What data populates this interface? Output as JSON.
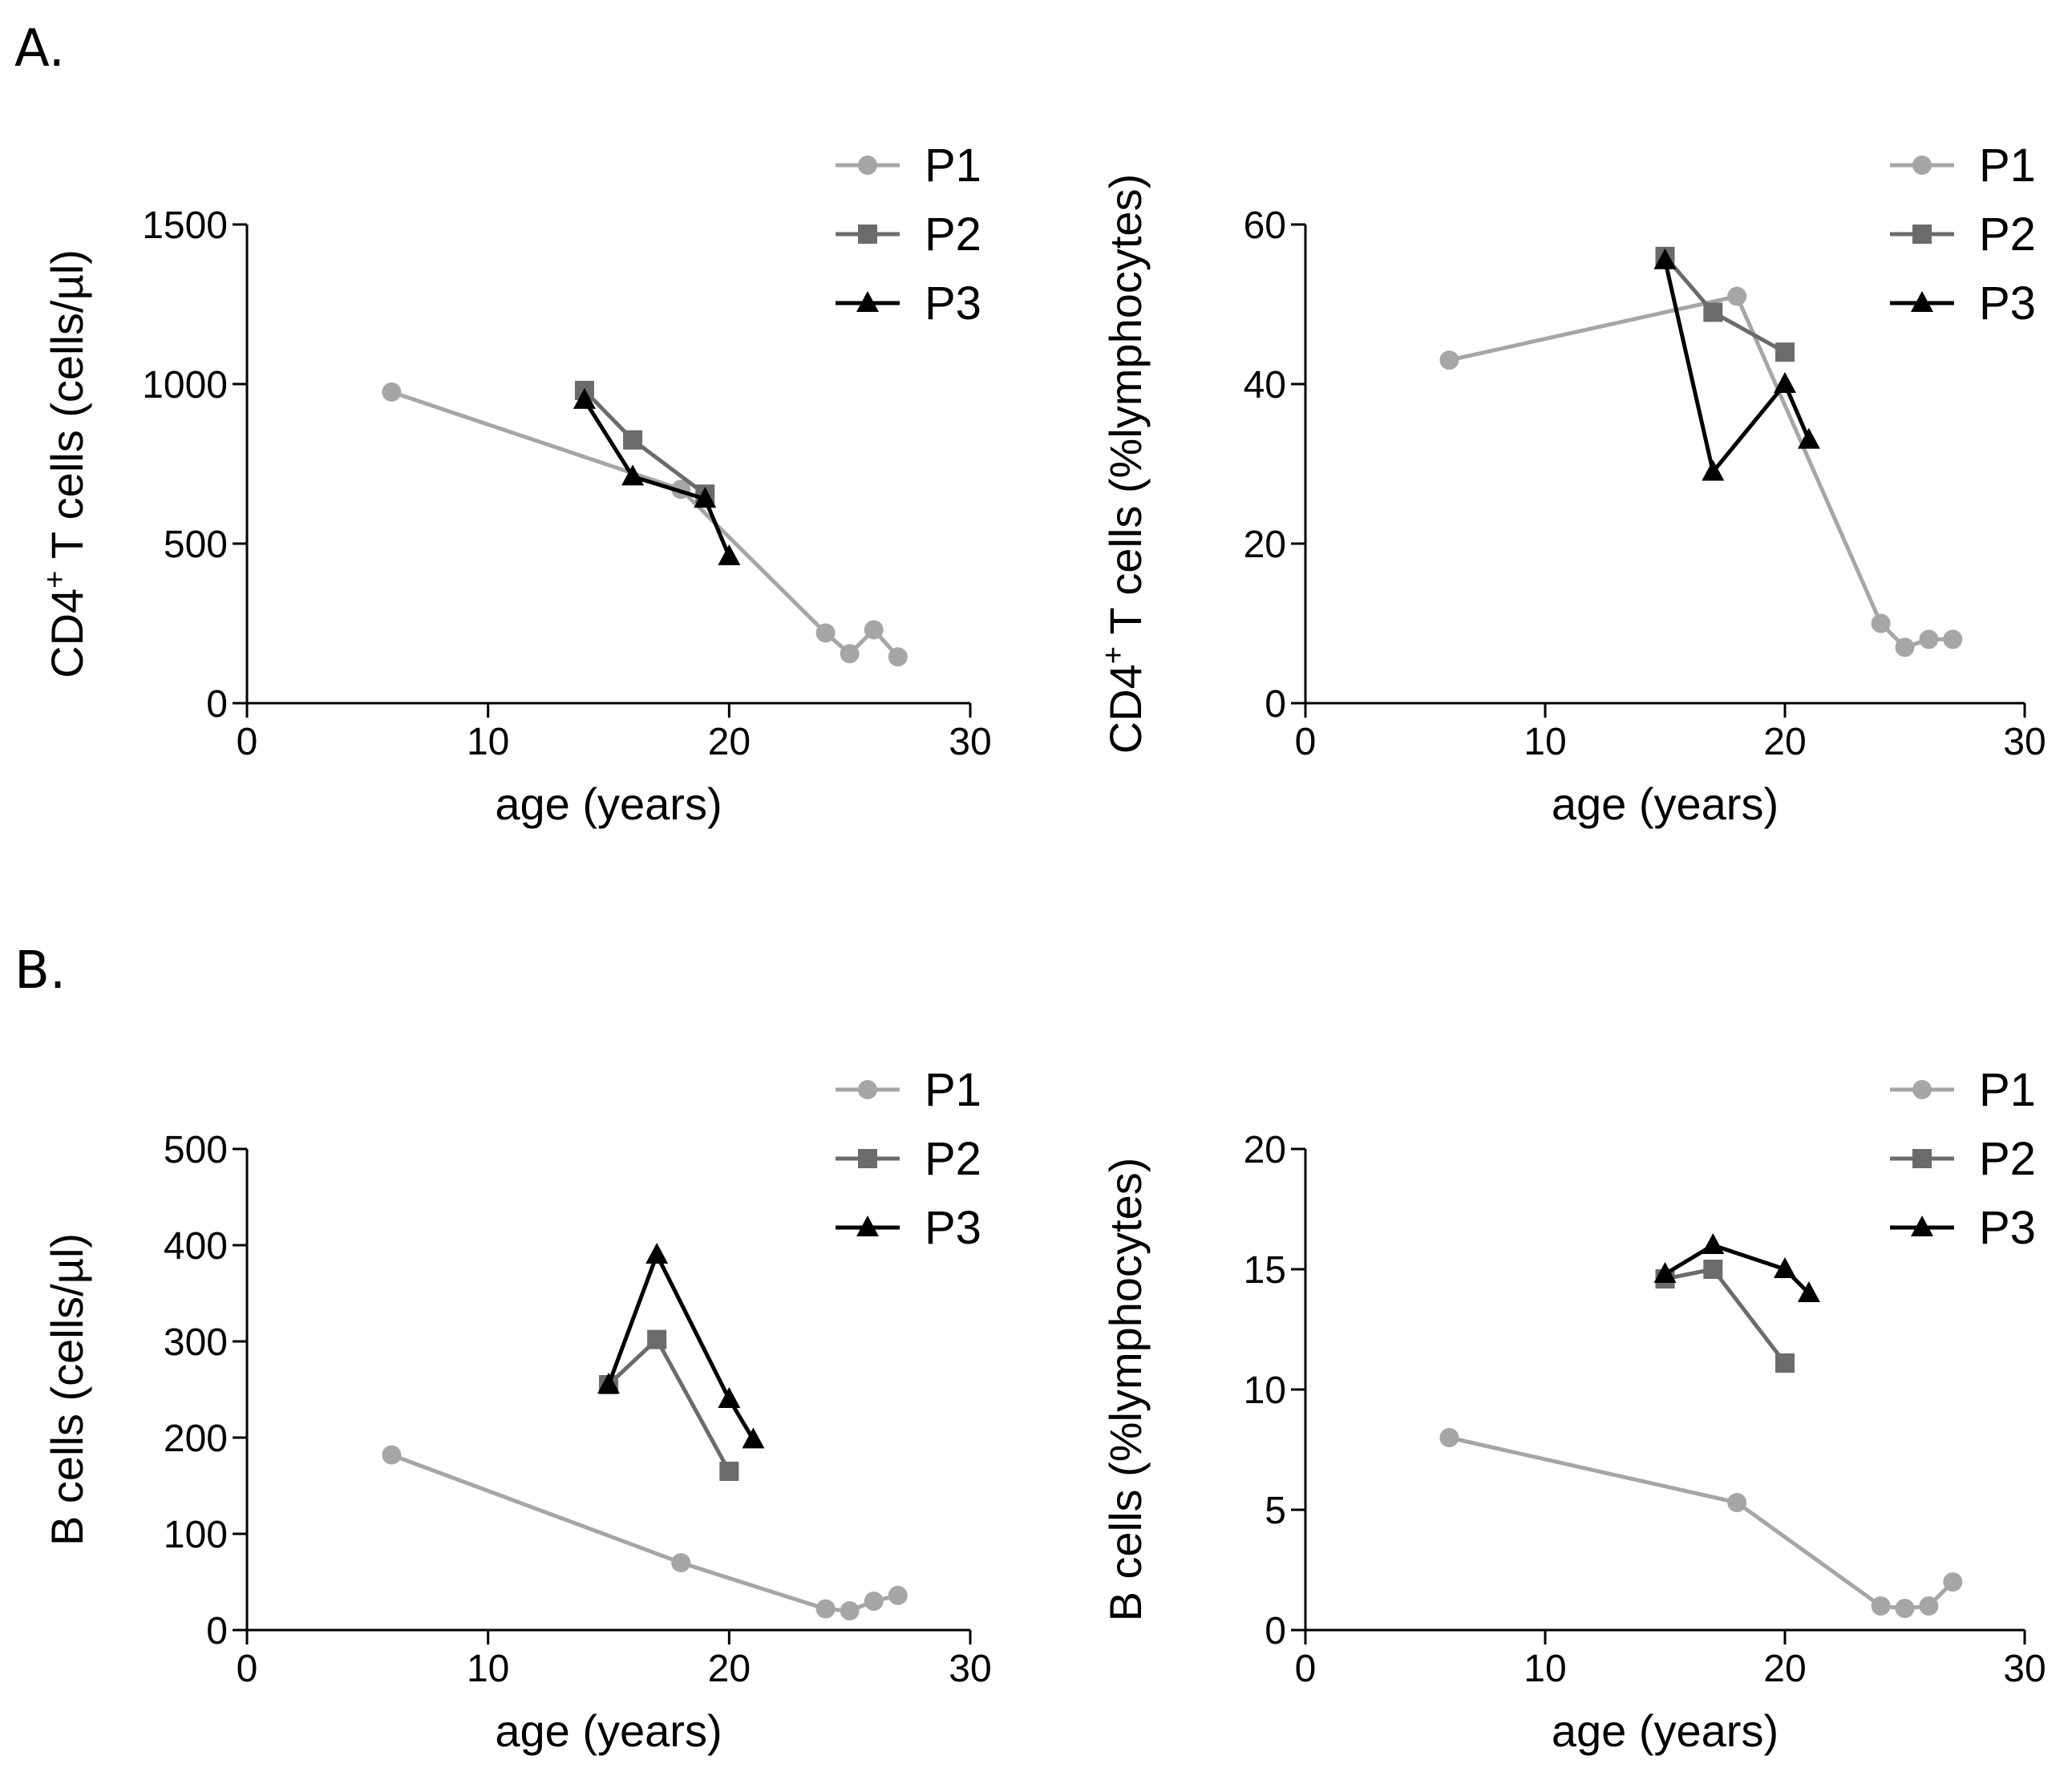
{
  "panel_labels": {
    "a": "A.",
    "b": "B."
  },
  "series_styles": [
    {
      "name": "P1",
      "color": "#a6a6a6",
      "marker": "circle"
    },
    {
      "name": "P2",
      "color": "#6b6b6b",
      "marker": "square"
    },
    {
      "name": "P3",
      "color": "#000000",
      "marker": "triangle"
    }
  ],
  "chart_data": [
    {
      "type": "line",
      "title": "",
      "xlabel": "age (years)",
      "ylabel_main": "CD4",
      "ylabel_sup": "+",
      "ylabel_rest": " T cells (cells/µl)",
      "xlim": [
        0,
        30
      ],
      "ylim": [
        0,
        1500
      ],
      "xticks": [
        0,
        10,
        20,
        30
      ],
      "yticks": [
        0,
        500,
        1000,
        1500
      ],
      "legend": "top-right",
      "series": [
        {
          "name": "P1",
          "x": [
            6,
            18,
            24,
            25,
            26,
            27
          ],
          "y": [
            975,
            670,
            220,
            155,
            230,
            145
          ]
        },
        {
          "name": "P2",
          "x": [
            14,
            16,
            19
          ],
          "y": [
            980,
            825,
            655
          ]
        },
        {
          "name": "P3",
          "x": [
            14,
            16,
            19,
            20
          ],
          "y": [
            950,
            710,
            640,
            460
          ]
        }
      ]
    },
    {
      "type": "line",
      "title": "",
      "xlabel": "age (years)",
      "ylabel_main": "CD4",
      "ylabel_sup": "+",
      "ylabel_rest": " T cells (%lymphocytes)",
      "xlim": [
        0,
        30
      ],
      "ylim": [
        0,
        60
      ],
      "xticks": [
        0,
        10,
        20,
        30
      ],
      "yticks": [
        0,
        20,
        40,
        60
      ],
      "legend": "top-right",
      "series": [
        {
          "name": "P1",
          "x": [
            6,
            18,
            24,
            25,
            26,
            27
          ],
          "y": [
            43,
            51,
            10,
            7,
            8,
            8
          ]
        },
        {
          "name": "P2",
          "x": [
            15,
            17,
            20
          ],
          "y": [
            56,
            49,
            44
          ]
        },
        {
          "name": "P3",
          "x": [
            15,
            17,
            20,
            21
          ],
          "y": [
            55.5,
            29,
            40,
            33
          ]
        }
      ]
    },
    {
      "type": "line",
      "title": "",
      "xlabel": "age (years)",
      "ylabel_main": "B cells (cells/µl)",
      "ylabel_sup": "",
      "ylabel_rest": "",
      "xlim": [
        0,
        30
      ],
      "ylim": [
        0,
        500
      ],
      "xticks": [
        0,
        10,
        20,
        30
      ],
      "yticks": [
        0,
        100,
        200,
        300,
        400,
        500
      ],
      "legend": "top-right",
      "series": [
        {
          "name": "P1",
          "x": [
            6,
            18,
            24,
            25,
            26,
            27
          ],
          "y": [
            182,
            70,
            22,
            20,
            30,
            36
          ]
        },
        {
          "name": "P2",
          "x": [
            15,
            17,
            20
          ],
          "y": [
            255,
            302,
            165
          ]
        },
        {
          "name": "P3",
          "x": [
            15,
            17,
            20,
            21
          ],
          "y": [
            255,
            390,
            240,
            198
          ]
        }
      ]
    },
    {
      "type": "line",
      "title": "",
      "xlabel": "age (years)",
      "ylabel_main": "B cells (%lymphocytes)",
      "ylabel_sup": "",
      "ylabel_rest": "",
      "xlim": [
        0,
        30
      ],
      "ylim": [
        0,
        20
      ],
      "xticks": [
        0,
        10,
        20,
        30
      ],
      "yticks": [
        0,
        5,
        10,
        15,
        20
      ],
      "legend": "top-right",
      "series": [
        {
          "name": "P1",
          "x": [
            6,
            18,
            24,
            25,
            26,
            27
          ],
          "y": [
            8,
            5.3,
            1,
            0.9,
            1,
            2
          ]
        },
        {
          "name": "P2",
          "x": [
            15,
            17,
            20
          ],
          "y": [
            14.6,
            15,
            11.1
          ]
        },
        {
          "name": "P3",
          "x": [
            15,
            17,
            20,
            21
          ],
          "y": [
            14.8,
            16,
            15,
            14
          ]
        }
      ]
    }
  ]
}
